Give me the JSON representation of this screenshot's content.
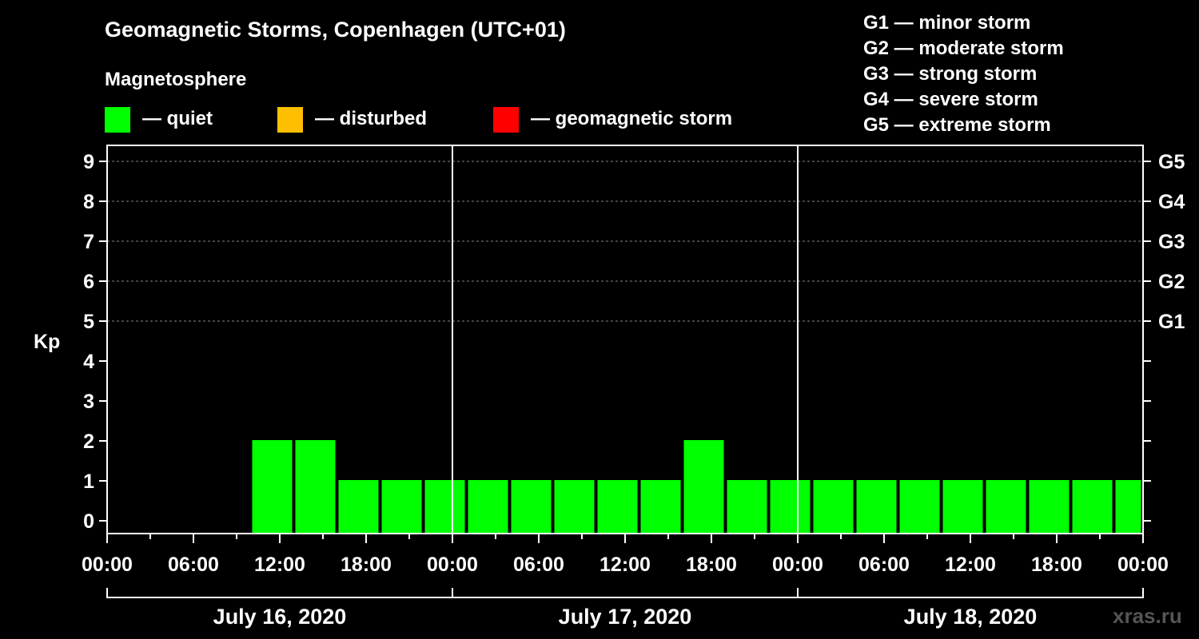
{
  "colors": {
    "quiet": "#00ff00",
    "disturbed": "#ffbf00",
    "storm": "#ff0000",
    "background": "#000000",
    "grid": "#888888"
  },
  "title": "Geomagnetic Storms, Copenhagen (UTC+01)",
  "legend": {
    "heading": "Magnetosphere",
    "items": [
      {
        "label": "— quiet",
        "color": "#00ff00"
      },
      {
        "label": "— disturbed",
        "color": "#ffbf00"
      },
      {
        "label": "— geomagnetic storm",
        "color": "#ff0000"
      }
    ]
  },
  "storm_scale": [
    "G1 — minor storm",
    "G2 — moderate storm",
    "G3 — strong storm",
    "G4 — severe storm",
    "G5 — extreme storm"
  ],
  "watermark": "xras.ru",
  "chart_data": {
    "type": "bar",
    "title": "Geomagnetic Storms, Copenhagen (UTC+01)",
    "ylabel": "Kp",
    "ylim": [
      0,
      9
    ],
    "yticks": [
      0,
      1,
      2,
      3,
      4,
      5,
      6,
      7,
      8,
      9
    ],
    "right_axis_labels": [
      {
        "kp": 5,
        "label": "G1"
      },
      {
        "kp": 6,
        "label": "G2"
      },
      {
        "kp": 7,
        "label": "G3"
      },
      {
        "kp": 8,
        "label": "G4"
      },
      {
        "kp": 9,
        "label": "G5"
      }
    ],
    "x_range_hours": [
      0,
      72
    ],
    "xtick_hours": [
      0,
      6,
      12,
      18,
      24,
      30,
      36,
      42,
      48,
      54,
      60,
      66,
      72
    ],
    "xtick_labels": [
      "00:00",
      "06:00",
      "12:00",
      "18:00",
      "00:00",
      "06:00",
      "12:00",
      "18:00",
      "00:00",
      "06:00",
      "12:00",
      "18:00",
      "00:00"
    ],
    "day_labels": [
      "July 16, 2020",
      "July 17, 2020",
      "July 18, 2020"
    ],
    "bar_width_hours": 3,
    "series": [
      {
        "name": "Kp",
        "bars": [
          {
            "start": 10,
            "value": 2
          },
          {
            "start": 13,
            "value": 2
          },
          {
            "start": 16,
            "value": 1
          },
          {
            "start": 19,
            "value": 1
          },
          {
            "start": 22,
            "value": 1
          },
          {
            "start": 25,
            "value": 1
          },
          {
            "start": 28,
            "value": 1
          },
          {
            "start": 31,
            "value": 1
          },
          {
            "start": 34,
            "value": 1
          },
          {
            "start": 37,
            "value": 1
          },
          {
            "start": 40,
            "value": 2
          },
          {
            "start": 43,
            "value": 1
          },
          {
            "start": 46,
            "value": 1
          },
          {
            "start": 49,
            "value": 1
          },
          {
            "start": 52,
            "value": 1
          },
          {
            "start": 55,
            "value": 1
          },
          {
            "start": 58,
            "value": 1
          },
          {
            "start": 61,
            "value": 1
          },
          {
            "start": 64,
            "value": 1
          },
          {
            "start": 67,
            "value": 1
          },
          {
            "start": 70,
            "value": 1
          }
        ]
      }
    ]
  }
}
